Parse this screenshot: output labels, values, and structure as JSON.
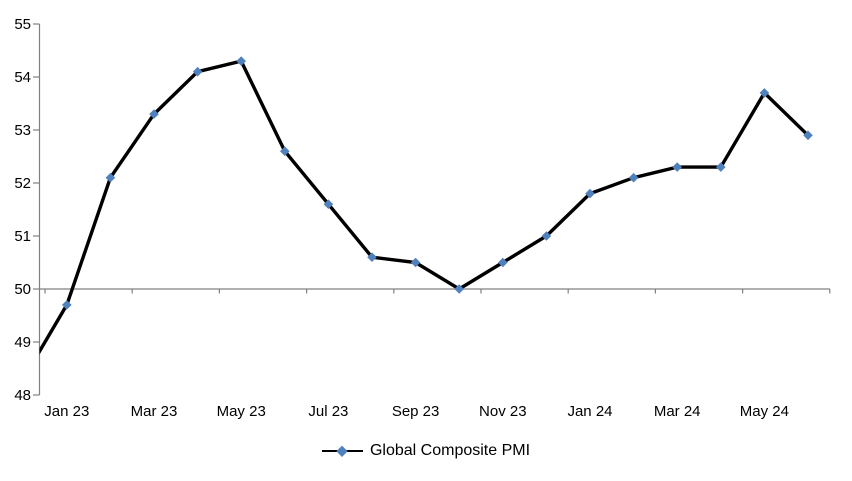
{
  "chart_data": {
    "type": "line",
    "title": "",
    "categories": [
      "Dec 22",
      "Jan 23",
      "Feb 23",
      "Mar 23",
      "Apr 23",
      "May 23",
      "Jun 23",
      "Jul 23",
      "Aug 23",
      "Sep 23",
      "Oct 23",
      "Nov 23",
      "Dec 23",
      "Jan 24",
      "Feb 24",
      "Mar 24",
      "Apr 24",
      "May 24",
      "Jun 24"
    ],
    "x_tick_labels": [
      "Jan 23",
      "Mar 23",
      "May 23",
      "Jul 23",
      "Sep 23",
      "Nov 23",
      "Jan 24",
      "Mar 24",
      "May 24"
    ],
    "y_ticks": [
      48,
      49,
      50,
      51,
      52,
      53,
      54,
      55
    ],
    "ylim": [
      48,
      55
    ],
    "axis_crosses_at": 50,
    "grid": false,
    "series": [
      {
        "name": "Global Composite PMI",
        "marker": "diamond",
        "values": [
          48.3,
          49.7,
          52.1,
          53.3,
          54.1,
          54.3,
          52.6,
          51.6,
          50.6,
          50.5,
          50.0,
          50.5,
          51.0,
          51.8,
          52.1,
          52.3,
          52.3,
          53.7,
          52.9
        ]
      }
    ],
    "legend": {
      "position": "bottom",
      "entries": [
        "Global Composite PMI"
      ]
    },
    "colors": {
      "series_line": "#000000",
      "marker": "#4F81BD",
      "axis": "#808080",
      "label_text": "#000000",
      "background": "#FFFFFF"
    }
  }
}
